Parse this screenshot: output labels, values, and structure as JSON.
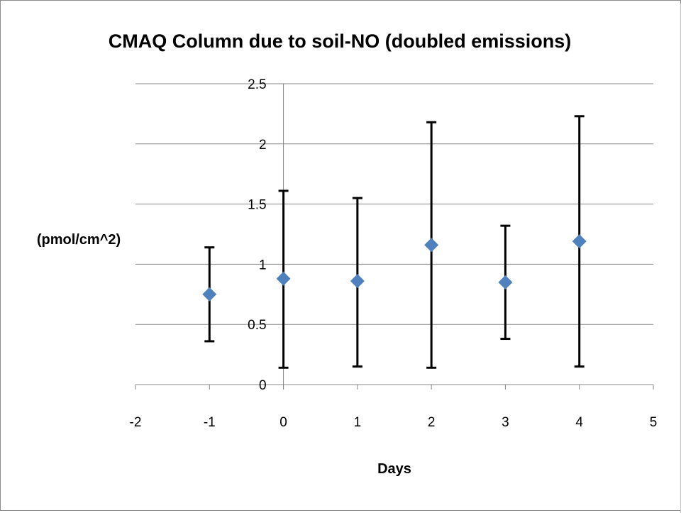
{
  "chart_data": {
    "type": "scatter",
    "title": "CMAQ Column due to soil-NO (doubled emissions)",
    "xlabel": "Days",
    "ylabel": "(pmol/cm^2)",
    "xlim": [
      -2,
      5
    ],
    "ylim": [
      0,
      2.5
    ],
    "x_ticks": [
      "-2",
      "-1",
      "0",
      "1",
      "2",
      "3",
      "4",
      "5"
    ],
    "y_ticks": [
      "0",
      "0.5",
      "1",
      "1.5",
      "2",
      "2.5"
    ],
    "grid": "horizontal",
    "marker": "diamond",
    "marker_color": "#4f81bd",
    "error_bar_color": "#000000",
    "series": [
      {
        "points": [
          {
            "x": -1,
            "y": 0.75,
            "y_low": 0.36,
            "y_high": 1.14
          },
          {
            "x": 0,
            "y": 0.88,
            "y_low": 0.14,
            "y_high": 1.61
          },
          {
            "x": 1,
            "y": 0.86,
            "y_low": 0.15,
            "y_high": 1.55
          },
          {
            "x": 2,
            "y": 1.16,
            "y_low": 0.14,
            "y_high": 2.18
          },
          {
            "x": 3,
            "y": 0.85,
            "y_low": 0.38,
            "y_high": 1.32
          },
          {
            "x": 4,
            "y": 1.19,
            "y_low": 0.15,
            "y_high": 2.23
          }
        ]
      }
    ]
  }
}
